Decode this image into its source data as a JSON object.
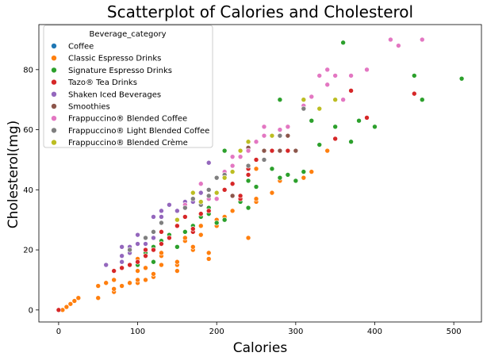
{
  "chart_data": {
    "type": "scatter",
    "title": "Scatterplot of Calories and Cholesterol",
    "xlabel": "Calories",
    "ylabel": "Cholesterol(mg)",
    "xlim": [
      -25,
      535
    ],
    "ylim": [
      -4,
      95
    ],
    "x_ticks": [
      0,
      100,
      200,
      300,
      400,
      500
    ],
    "y_ticks": [
      0,
      20,
      40,
      60,
      80
    ],
    "x_tick_labels": [
      "0",
      "100",
      "200",
      "300",
      "400",
      "500"
    ],
    "y_tick_labels": [
      "0",
      "20",
      "40",
      "60",
      "80"
    ],
    "grid": false,
    "legend": {
      "title": "Beverage_category",
      "placement": "top-left"
    },
    "series": [
      {
        "name": "Coffee",
        "color": "#1f77b4",
        "points": [
          [
            3,
            0
          ],
          [
            4,
            0
          ],
          [
            5,
            0
          ],
          [
            5,
            0
          ]
        ]
      },
      {
        "name": "Classic Espresso Drinks",
        "color": "#ff7f0e",
        "points": [
          [
            0,
            0
          ],
          [
            5,
            0
          ],
          [
            10,
            1
          ],
          [
            15,
            2
          ],
          [
            20,
            3
          ],
          [
            25,
            4
          ],
          [
            50,
            4
          ],
          [
            50,
            8
          ],
          [
            60,
            9
          ],
          [
            70,
            6
          ],
          [
            70,
            7
          ],
          [
            70,
            10
          ],
          [
            80,
            8
          ],
          [
            90,
            9
          ],
          [
            100,
            9
          ],
          [
            100,
            10
          ],
          [
            100,
            13
          ],
          [
            100,
            17
          ],
          [
            110,
            10
          ],
          [
            110,
            14
          ],
          [
            120,
            11
          ],
          [
            120,
            12
          ],
          [
            130,
            15
          ],
          [
            130,
            18
          ],
          [
            130,
            19
          ],
          [
            150,
            13
          ],
          [
            150,
            15
          ],
          [
            150,
            16
          ],
          [
            160,
            23
          ],
          [
            160,
            24
          ],
          [
            170,
            20
          ],
          [
            170,
            21
          ],
          [
            180,
            25
          ],
          [
            180,
            28
          ],
          [
            190,
            17
          ],
          [
            190,
            19
          ],
          [
            200,
            28
          ],
          [
            200,
            30
          ],
          [
            210,
            31
          ],
          [
            220,
            33
          ],
          [
            230,
            37
          ],
          [
            240,
            24
          ],
          [
            250,
            36
          ],
          [
            250,
            37
          ],
          [
            250,
            47
          ],
          [
            270,
            39
          ],
          [
            280,
            43
          ],
          [
            310,
            44
          ],
          [
            320,
            46
          ],
          [
            340,
            53
          ]
        ]
      },
      {
        "name": "Signature Espresso Drinks",
        "color": "#2ca02c",
        "points": [
          [
            100,
            15
          ],
          [
            110,
            19
          ],
          [
            120,
            16
          ],
          [
            120,
            21
          ],
          [
            130,
            23
          ],
          [
            140,
            25
          ],
          [
            140,
            35
          ],
          [
            150,
            21
          ],
          [
            160,
            26
          ],
          [
            170,
            28
          ],
          [
            180,
            31
          ],
          [
            190,
            32
          ],
          [
            190,
            34
          ],
          [
            200,
            29
          ],
          [
            210,
            30
          ],
          [
            210,
            53
          ],
          [
            230,
            36
          ],
          [
            240,
            34
          ],
          [
            240,
            43
          ],
          [
            250,
            41
          ],
          [
            260,
            53
          ],
          [
            270,
            47
          ],
          [
            280,
            44
          ],
          [
            280,
            70
          ],
          [
            290,
            45
          ],
          [
            300,
            43
          ],
          [
            310,
            46
          ],
          [
            310,
            68
          ],
          [
            320,
            63
          ],
          [
            330,
            55
          ],
          [
            350,
            61
          ],
          [
            360,
            89
          ],
          [
            370,
            56
          ],
          [
            380,
            63
          ],
          [
            400,
            61
          ],
          [
            450,
            78
          ],
          [
            460,
            70
          ],
          [
            510,
            77
          ]
        ]
      },
      {
        "name": "Tazo® Tea Drinks",
        "color": "#d62728",
        "points": [
          [
            0,
            0
          ],
          [
            70,
            13
          ],
          [
            80,
            14
          ],
          [
            90,
            15
          ],
          [
            100,
            16
          ],
          [
            110,
            18
          ],
          [
            110,
            20
          ],
          [
            120,
            20
          ],
          [
            130,
            22
          ],
          [
            130,
            26
          ],
          [
            140,
            24
          ],
          [
            150,
            28
          ],
          [
            160,
            31
          ],
          [
            170,
            26
          ],
          [
            170,
            27
          ],
          [
            180,
            32
          ],
          [
            190,
            33
          ],
          [
            200,
            37
          ],
          [
            210,
            40
          ],
          [
            220,
            42
          ],
          [
            230,
            37
          ],
          [
            230,
            38
          ],
          [
            240,
            45
          ],
          [
            240,
            47
          ],
          [
            250,
            50
          ],
          [
            270,
            53
          ],
          [
            290,
            53
          ],
          [
            300,
            53
          ],
          [
            350,
            57
          ],
          [
            370,
            73
          ],
          [
            390,
            64
          ],
          [
            450,
            72
          ]
        ]
      },
      {
        "name": "Shaken Iced Beverages",
        "color": "#9467bd",
        "points": [
          [
            60,
            15
          ],
          [
            80,
            16
          ],
          [
            80,
            18
          ],
          [
            80,
            21
          ],
          [
            90,
            19
          ],
          [
            90,
            21
          ],
          [
            100,
            22
          ],
          [
            100,
            25
          ],
          [
            110,
            22
          ],
          [
            110,
            24
          ],
          [
            120,
            24
          ],
          [
            120,
            31
          ],
          [
            130,
            31
          ],
          [
            130,
            33
          ],
          [
            140,
            35
          ],
          [
            150,
            33
          ],
          [
            160,
            36
          ],
          [
            170,
            36
          ],
          [
            180,
            39
          ],
          [
            190,
            49
          ],
          [
            200,
            39
          ]
        ]
      },
      {
        "name": "Smoothies",
        "color": "#8c564b",
        "points": [
          [
            220,
            38
          ],
          [
            240,
            54
          ],
          [
            260,
            53
          ],
          [
            280,
            53
          ],
          [
            290,
            58
          ],
          [
            300,
            53
          ]
        ]
      },
      {
        "name": "Frappuccino® Blended Coffee",
        "color": "#e377c2",
        "points": [
          [
            160,
            35
          ],
          [
            180,
            42
          ],
          [
            190,
            37
          ],
          [
            200,
            37
          ],
          [
            210,
            46
          ],
          [
            220,
            48
          ],
          [
            220,
            51
          ],
          [
            230,
            51
          ],
          [
            240,
            53
          ],
          [
            250,
            56
          ],
          [
            260,
            58
          ],
          [
            260,
            61
          ],
          [
            280,
            60
          ],
          [
            290,
            61
          ],
          [
            310,
            68
          ],
          [
            320,
            71
          ],
          [
            330,
            78
          ],
          [
            340,
            75
          ],
          [
            340,
            80
          ],
          [
            350,
            78
          ],
          [
            360,
            70
          ],
          [
            370,
            78
          ],
          [
            390,
            80
          ],
          [
            420,
            90
          ],
          [
            430,
            88
          ],
          [
            460,
            90
          ]
        ]
      },
      {
        "name": "Frappuccino® Light Blended Coffee",
        "color": "#7f7f7f",
        "points": [
          [
            90,
            20
          ],
          [
            110,
            24
          ],
          [
            120,
            26
          ],
          [
            130,
            29
          ],
          [
            150,
            30
          ],
          [
            160,
            34
          ],
          [
            170,
            37
          ],
          [
            180,
            35
          ],
          [
            190,
            38
          ],
          [
            190,
            40
          ],
          [
            200,
            44
          ],
          [
            210,
            45
          ],
          [
            240,
            48
          ],
          [
            260,
            50
          ],
          [
            280,
            58
          ],
          [
            310,
            67
          ]
        ]
      },
      {
        "name": "Frappuccino® Blended Crème",
        "color": "#bcbd22",
        "points": [
          [
            150,
            30
          ],
          [
            170,
            39
          ],
          [
            180,
            36
          ],
          [
            200,
            39
          ],
          [
            210,
            44
          ],
          [
            220,
            46
          ],
          [
            230,
            53
          ],
          [
            240,
            56
          ],
          [
            270,
            58
          ],
          [
            310,
            70
          ],
          [
            330,
            67
          ],
          [
            350,
            70
          ]
        ]
      }
    ]
  }
}
